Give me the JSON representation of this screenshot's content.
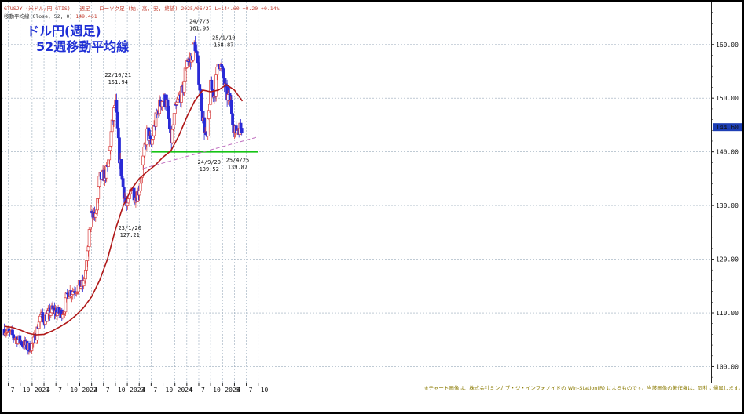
{
  "header": {
    "line1": "GTUSJY (米ドル/円 GTIS) - 週足 - ローソク足 (始, 高, 安, 終値)  2025/06/27 L=144.60 +0.20 +0.14%",
    "line2_label": "移動平均線(Close, 52, 0)",
    "line2_value": "149.461"
  },
  "title": {
    "line1": "ドル円(週足)",
    "line2": "52週移動平均線"
  },
  "footnote": "※チャート画像は、株式会社ミンカブ・ジ・インフォノイドの Win-Station(R) によるものです。当該画像の著作権は、同社に帰属します。",
  "colors": {
    "up": "#d94040",
    "down": "#2a2ad6",
    "ma": "#b01818",
    "support": "#16c316",
    "trend": "#c070c0",
    "price_tag": "#1e3fb5"
  },
  "chart_data": {
    "type": "candlestick",
    "title": "ドル円(週足)",
    "series_label": "52週移動平均線",
    "ylim": [
      97,
      168
    ],
    "y_ticks": [
      100,
      110,
      120,
      130,
      140,
      150,
      160
    ],
    "y_tick_labels": [
      "100.00",
      "110.00",
      "120.00",
      "130.00",
      "140.00",
      "150.00",
      "160.00"
    ],
    "x_tick_labels": [
      "7",
      "10",
      "2021",
      "4",
      "7",
      "10",
      "2022",
      "4",
      "7",
      "10",
      "2023",
      "4",
      "7",
      "10",
      "2024",
      "4",
      "7",
      "10",
      "2025",
      "4",
      "7",
      "10"
    ],
    "x_tick_dates": [
      "2020-07",
      "2020-10",
      "2021-01",
      "2021-04",
      "2021-07",
      "2021-10",
      "2022-01",
      "2022-04",
      "2022-07",
      "2022-10",
      "2023-01",
      "2023-04",
      "2023-07",
      "2023-10",
      "2024-01",
      "2024-04",
      "2024-07",
      "2024-10",
      "2025-01",
      "2025-04",
      "2025-07",
      "2025-10"
    ],
    "last_price": 144.6,
    "last_price_label": "144.60",
    "annotations": [
      {
        "date": "2022-10-21",
        "value": 151.94,
        "date_label": "22/10/21",
        "value_label": "151.94",
        "pos": "above"
      },
      {
        "date": "2023-01-20",
        "value": 127.21,
        "date_label": "23/1/20",
        "value_label": "127.21",
        "pos": "below"
      },
      {
        "date": "2024-07-05",
        "value": 161.95,
        "date_label": "24/7/5",
        "value_label": "161.95",
        "pos": "above"
      },
      {
        "date": "2024-09-20",
        "value": 139.52,
        "date_label": "24/9/20",
        "value_label": "139.52",
        "pos": "below"
      },
      {
        "date": "2025-01-10",
        "value": 158.87,
        "date_label": "25/1/10",
        "value_label": "158.87",
        "pos": "above"
      },
      {
        "date": "2025-04-25",
        "value": 139.87,
        "date_label": "25/4/25",
        "value_label": "139.87",
        "pos": "below"
      }
    ],
    "support_line": {
      "value": 140.0,
      "from": "2023-07",
      "to": "2025-10"
    },
    "trend_line": {
      "from": [
        "2023-05",
        136.9
      ],
      "to": [
        "2025-10",
        142.8
      ]
    },
    "price_path": [
      [
        "2020-06",
        107.0
      ],
      [
        "2020-07",
        106.3
      ],
      [
        "2020-08",
        105.8
      ],
      [
        "2020-09",
        105.3
      ],
      [
        "2020-10",
        104.7
      ],
      [
        "2020-11",
        104.2
      ],
      [
        "2020-12",
        103.4
      ],
      [
        "2021-01",
        104.0
      ],
      [
        "2021-02",
        105.8
      ],
      [
        "2021-03",
        109.5
      ],
      [
        "2021-04",
        108.8
      ],
      [
        "2021-05",
        109.6
      ],
      [
        "2021-06",
        110.5
      ],
      [
        "2021-07",
        110.2
      ],
      [
        "2021-08",
        109.8
      ],
      [
        "2021-09",
        110.5
      ],
      [
        "2021-10",
        113.8
      ],
      [
        "2021-11",
        114.0
      ],
      [
        "2021-12",
        114.5
      ],
      [
        "2022-01",
        115.0
      ],
      [
        "2022-02",
        115.2
      ],
      [
        "2022-03",
        121.0
      ],
      [
        "2022-04",
        129.5
      ],
      [
        "2022-05",
        127.5
      ],
      [
        "2022-06",
        135.0
      ],
      [
        "2022-07",
        135.5
      ],
      [
        "2022-08",
        136.5
      ],
      [
        "2022-09",
        144.0
      ],
      [
        "2022-10",
        149.5
      ],
      [
        "2022-11",
        139.0
      ],
      [
        "2022-12",
        133.0
      ],
      [
        "2023-01",
        129.0
      ],
      [
        "2023-02",
        134.0
      ],
      [
        "2023-03",
        131.5
      ],
      [
        "2023-04",
        133.0
      ],
      [
        "2023-05",
        138.5
      ],
      [
        "2023-06",
        144.0
      ],
      [
        "2023-07",
        141.0
      ],
      [
        "2023-08",
        145.5
      ],
      [
        "2023-09",
        148.5
      ],
      [
        "2023-10",
        150.0
      ],
      [
        "2023-11",
        149.0
      ],
      [
        "2023-12",
        141.5
      ],
      [
        "2024-01",
        147.5
      ],
      [
        "2024-02",
        150.0
      ],
      [
        "2024-03",
        151.3
      ],
      [
        "2024-04",
        157.5
      ],
      [
        "2024-05",
        156.8
      ],
      [
        "2024-06",
        160.5
      ],
      [
        "2024-07",
        154.0
      ],
      [
        "2024-08",
        146.5
      ],
      [
        "2024-09",
        141.5
      ],
      [
        "2024-10",
        152.0
      ],
      [
        "2024-11",
        150.5
      ],
      [
        "2024-12",
        157.5
      ],
      [
        "2025-01",
        154.5
      ],
      [
        "2025-02",
        150.5
      ],
      [
        "2025-03",
        149.5
      ],
      [
        "2025-04",
        143.5
      ],
      [
        "2025-05",
        144.5
      ],
      [
        "2025-06",
        144.6
      ]
    ],
    "ma52_path": [
      [
        "2020-06",
        107.5
      ],
      [
        "2020-08",
        107.3
      ],
      [
        "2020-10",
        106.8
      ],
      [
        "2020-12",
        106.2
      ],
      [
        "2021-02",
        105.9
      ],
      [
        "2021-04",
        106.0
      ],
      [
        "2021-06",
        106.6
      ],
      [
        "2021-08",
        107.4
      ],
      [
        "2021-10",
        108.3
      ],
      [
        "2021-12",
        109.5
      ],
      [
        "2022-02",
        111.0
      ],
      [
        "2022-04",
        113.0
      ],
      [
        "2022-06",
        116.0
      ],
      [
        "2022-08",
        120.0
      ],
      [
        "2022-10",
        125.5
      ],
      [
        "2022-12",
        130.0
      ],
      [
        "2023-02",
        133.0
      ],
      [
        "2023-04",
        135.0
      ],
      [
        "2023-06",
        136.3
      ],
      [
        "2023-08",
        137.5
      ],
      [
        "2023-10",
        139.0
      ],
      [
        "2023-12",
        140.2
      ],
      [
        "2024-02",
        143.0
      ],
      [
        "2024-04",
        146.5
      ],
      [
        "2024-06",
        149.5
      ],
      [
        "2024-08",
        151.5
      ],
      [
        "2024-10",
        151.2
      ],
      [
        "2024-12",
        151.5
      ],
      [
        "2025-02",
        152.5
      ],
      [
        "2025-04",
        151.5
      ],
      [
        "2025-06",
        149.461
      ]
    ]
  }
}
